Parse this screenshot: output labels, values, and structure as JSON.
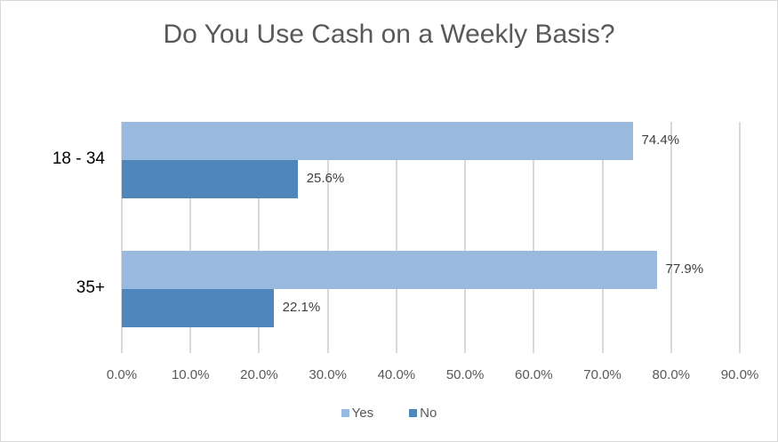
{
  "chart_data": {
    "type": "bar",
    "orientation": "horizontal",
    "title": "Do You Use Cash on a Weekly Basis?",
    "categories": [
      "18 - 34",
      "35+"
    ],
    "series": [
      {
        "name": "Yes",
        "values": [
          74.4,
          77.9
        ],
        "labels": [
          "74.4%",
          "77.9%"
        ],
        "color": "#9ab9df"
      },
      {
        "name": "No",
        "values": [
          25.6,
          22.1
        ],
        "labels": [
          "25.6%",
          "22.1%"
        ],
        "color": "#4f87bd"
      }
    ],
    "xlabel": "",
    "ylabel": "",
    "xlim": [
      0,
      90
    ],
    "ticks": [
      "0.0%",
      "10.0%",
      "20.0%",
      "30.0%",
      "40.0%",
      "50.0%",
      "60.0%",
      "70.0%",
      "80.0%",
      "90.0%"
    ],
    "grid": true,
    "legend_position": "bottom"
  }
}
